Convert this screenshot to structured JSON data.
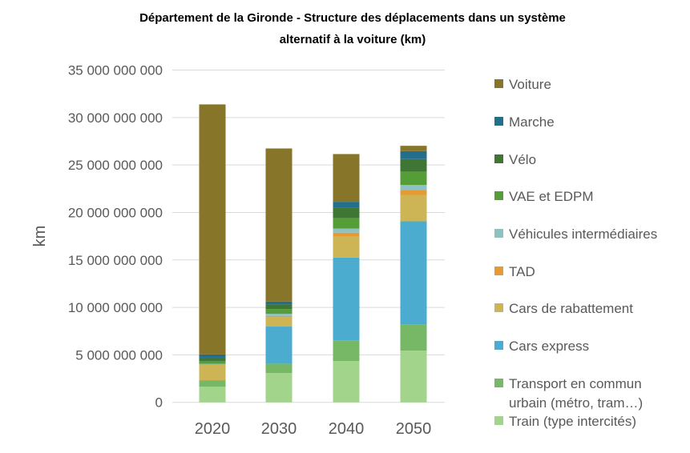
{
  "chart_data": {
    "type": "bar",
    "stacked": true,
    "title_lines": [
      "Département de la Gironde - Structure des déplacements dans un système",
      "alternatif à la voiture (km)"
    ],
    "xlabel": "",
    "ylabel": "km",
    "ylim": [
      0,
      35000000000
    ],
    "yticks": [
      0,
      5000000000,
      10000000000,
      15000000000,
      20000000000,
      25000000000,
      30000000000,
      35000000000
    ],
    "ytick_labels": [
      "0",
      "5 000 000 000",
      "10 000 000 000",
      "15 000 000 000",
      "20 000 000 000",
      "25 000 000 000",
      "30 000 000 000",
      "35 000 000 000"
    ],
    "grid": true,
    "legend_position": "right",
    "categories": [
      "2020",
      "2030",
      "2040",
      "2050"
    ],
    "series": [
      {
        "name": "Train (type intercités)",
        "color": "#A2D58B",
        "values": [
          1660000000,
          3090000000,
          4350000000,
          5450000000
        ]
      },
      {
        "name": "Transport en commun urbain (métro, tram…)",
        "legend_lines": [
          "Transport en commun",
          "urbain (métro, tram…)"
        ],
        "color": "#77B866",
        "values": [
          670000000,
          980000000,
          2170000000,
          2720000000
        ]
      },
      {
        "name": "Cars express",
        "color": "#4BACD0",
        "values": [
          0,
          3910000000,
          8730000000,
          10900000000
        ]
      },
      {
        "name": "Cars de rabattement",
        "color": "#CDB556",
        "values": [
          1690000000,
          1010000000,
          2190000000,
          2780000000
        ]
      },
      {
        "name": "TAD",
        "color": "#E59A35",
        "values": [
          20000000,
          110000000,
          430000000,
          510000000
        ]
      },
      {
        "name": "Véhicules intermédiaires",
        "color": "#8FC1C2",
        "values": [
          20000000,
          230000000,
          440000000,
          530000000
        ]
      },
      {
        "name": "VAE et EDPM",
        "color": "#559E37",
        "values": [
          300000000,
          500000000,
          1100000000,
          1410000000
        ]
      },
      {
        "name": "Vélo",
        "color": "#3F7634",
        "values": [
          340000000,
          480000000,
          1100000000,
          1320000000
        ]
      },
      {
        "name": "Marche",
        "color": "#236E8A",
        "values": [
          340000000,
          310000000,
          610000000,
          840000000
        ]
      },
      {
        "name": "Voiture",
        "color": "#87752A",
        "values": [
          26340000000,
          16120000000,
          5030000000,
          560000000
        ]
      }
    ]
  }
}
